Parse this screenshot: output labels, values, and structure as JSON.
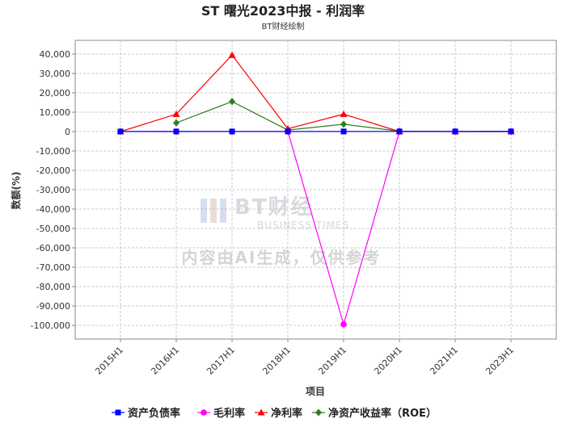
{
  "chart_data": {
    "type": "line",
    "title": "ST 曙光2023中报 - 利润率",
    "subtitle": "BT财经绘制",
    "xlabel": "项目",
    "ylabel": "数额(%)",
    "categories": [
      "2015H1",
      "2016H1",
      "2017H1",
      "2018H1",
      "2019H1",
      "2020H1",
      "2021H1",
      "2023H1"
    ],
    "ylim": [
      -105000,
      45000
    ],
    "yticks": [
      40000,
      30000,
      20000,
      10000,
      0,
      -10000,
      -20000,
      -30000,
      -40000,
      -50000,
      -60000,
      -70000,
      -80000,
      -90000,
      -100000
    ],
    "ytick_labels": [
      "40,000",
      "30,000",
      "20,000",
      "10,000",
      "0",
      "-10,000",
      "-20,000",
      "-30,000",
      "-40,000",
      "-50,000",
      "-60,000",
      "-70,000",
      "-80,000",
      "-90,000",
      "-100,000"
    ],
    "grid": true,
    "legend_position": "bottom",
    "series": [
      {
        "name": "资产负债率",
        "color": "#0000ff",
        "marker": "square",
        "values": [
          50,
          40,
          45,
          55,
          60,
          70,
          80,
          90
        ]
      },
      {
        "name": "毛利率",
        "color": "#ff00ff",
        "marker": "circle",
        "values": [
          20,
          15,
          20,
          20,
          -99500,
          20,
          20,
          20
        ]
      },
      {
        "name": "净利率",
        "color": "#ff0000",
        "marker": "triangle",
        "values": [
          0,
          9000,
          39500,
          1500,
          9000,
          0,
          0,
          0
        ]
      },
      {
        "name": "净资产收益率（ROE）",
        "color": "#2e7d1e",
        "marker": "diamond",
        "values": [
          null,
          4500,
          15500,
          800,
          3800,
          200,
          0,
          0
        ]
      }
    ]
  },
  "watermark": {
    "brand": "BT财经",
    "brand_en": "BUSINESS TIMES",
    "notice": "内容由AI生成，仅供参考"
  }
}
